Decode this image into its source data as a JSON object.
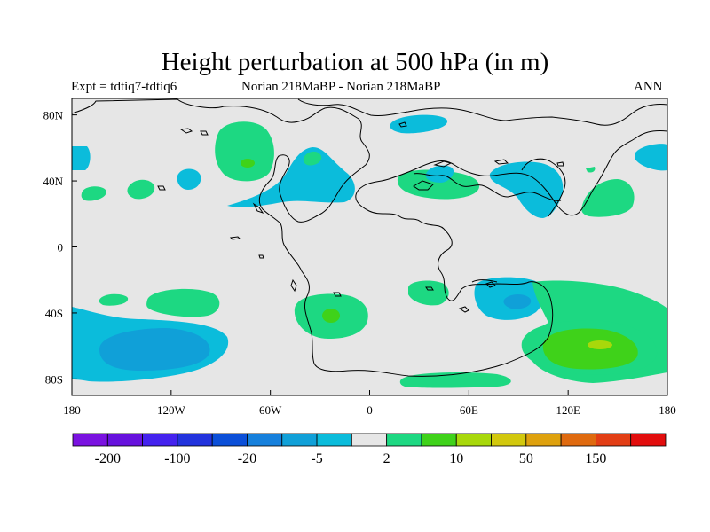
{
  "title": "Height perturbation at 500 hPa (in m)",
  "subtitle": {
    "left": "Expt = tdtiq7-tdtiq6",
    "center": "Norian  218MaBP - Norian  218MaBP",
    "right": "ANN"
  },
  "map": {
    "x_ticks": [
      {
        "lon": -180,
        "label": "180"
      },
      {
        "lon": -120,
        "label": "120W"
      },
      {
        "lon": -60,
        "label": "60W"
      },
      {
        "lon": 0,
        "label": "0"
      },
      {
        "lon": 60,
        "label": "60E"
      },
      {
        "lon": 120,
        "label": "120E"
      },
      {
        "lon": 180,
        "label": "180"
      }
    ],
    "y_ticks": [
      {
        "lat": 80,
        "label": "80N"
      },
      {
        "lat": 40,
        "label": "40N"
      },
      {
        "lat": 0,
        "label": "0"
      },
      {
        "lat": -40,
        "label": "40S"
      },
      {
        "lat": -80,
        "label": "80S"
      }
    ]
  },
  "colorbar": {
    "colors": [
      "#7a12e0",
      "#6611dd",
      "#4422ee",
      "#2233dd",
      "#0b4fd8",
      "#1680dc",
      "#10a0d8",
      "#0bbcdb",
      "#e6e6e6",
      "#1dd882",
      "#3fd21a",
      "#a8d80b",
      "#d2c80d",
      "#dea10d",
      "#df6a0f",
      "#e23e15",
      "#e20d0d"
    ],
    "labels": [
      "-200",
      "-100",
      "-20",
      "-5",
      "2",
      "10",
      "50",
      "150"
    ]
  },
  "fill_colors": {
    "background": "#e6e6e6",
    "neg_light": "#0bbcdb",
    "neg_mid": "#10a0d8",
    "pos_light": "#1dd882",
    "pos_mid": "#3fd21a",
    "pos_strong": "#a8d80b"
  }
}
